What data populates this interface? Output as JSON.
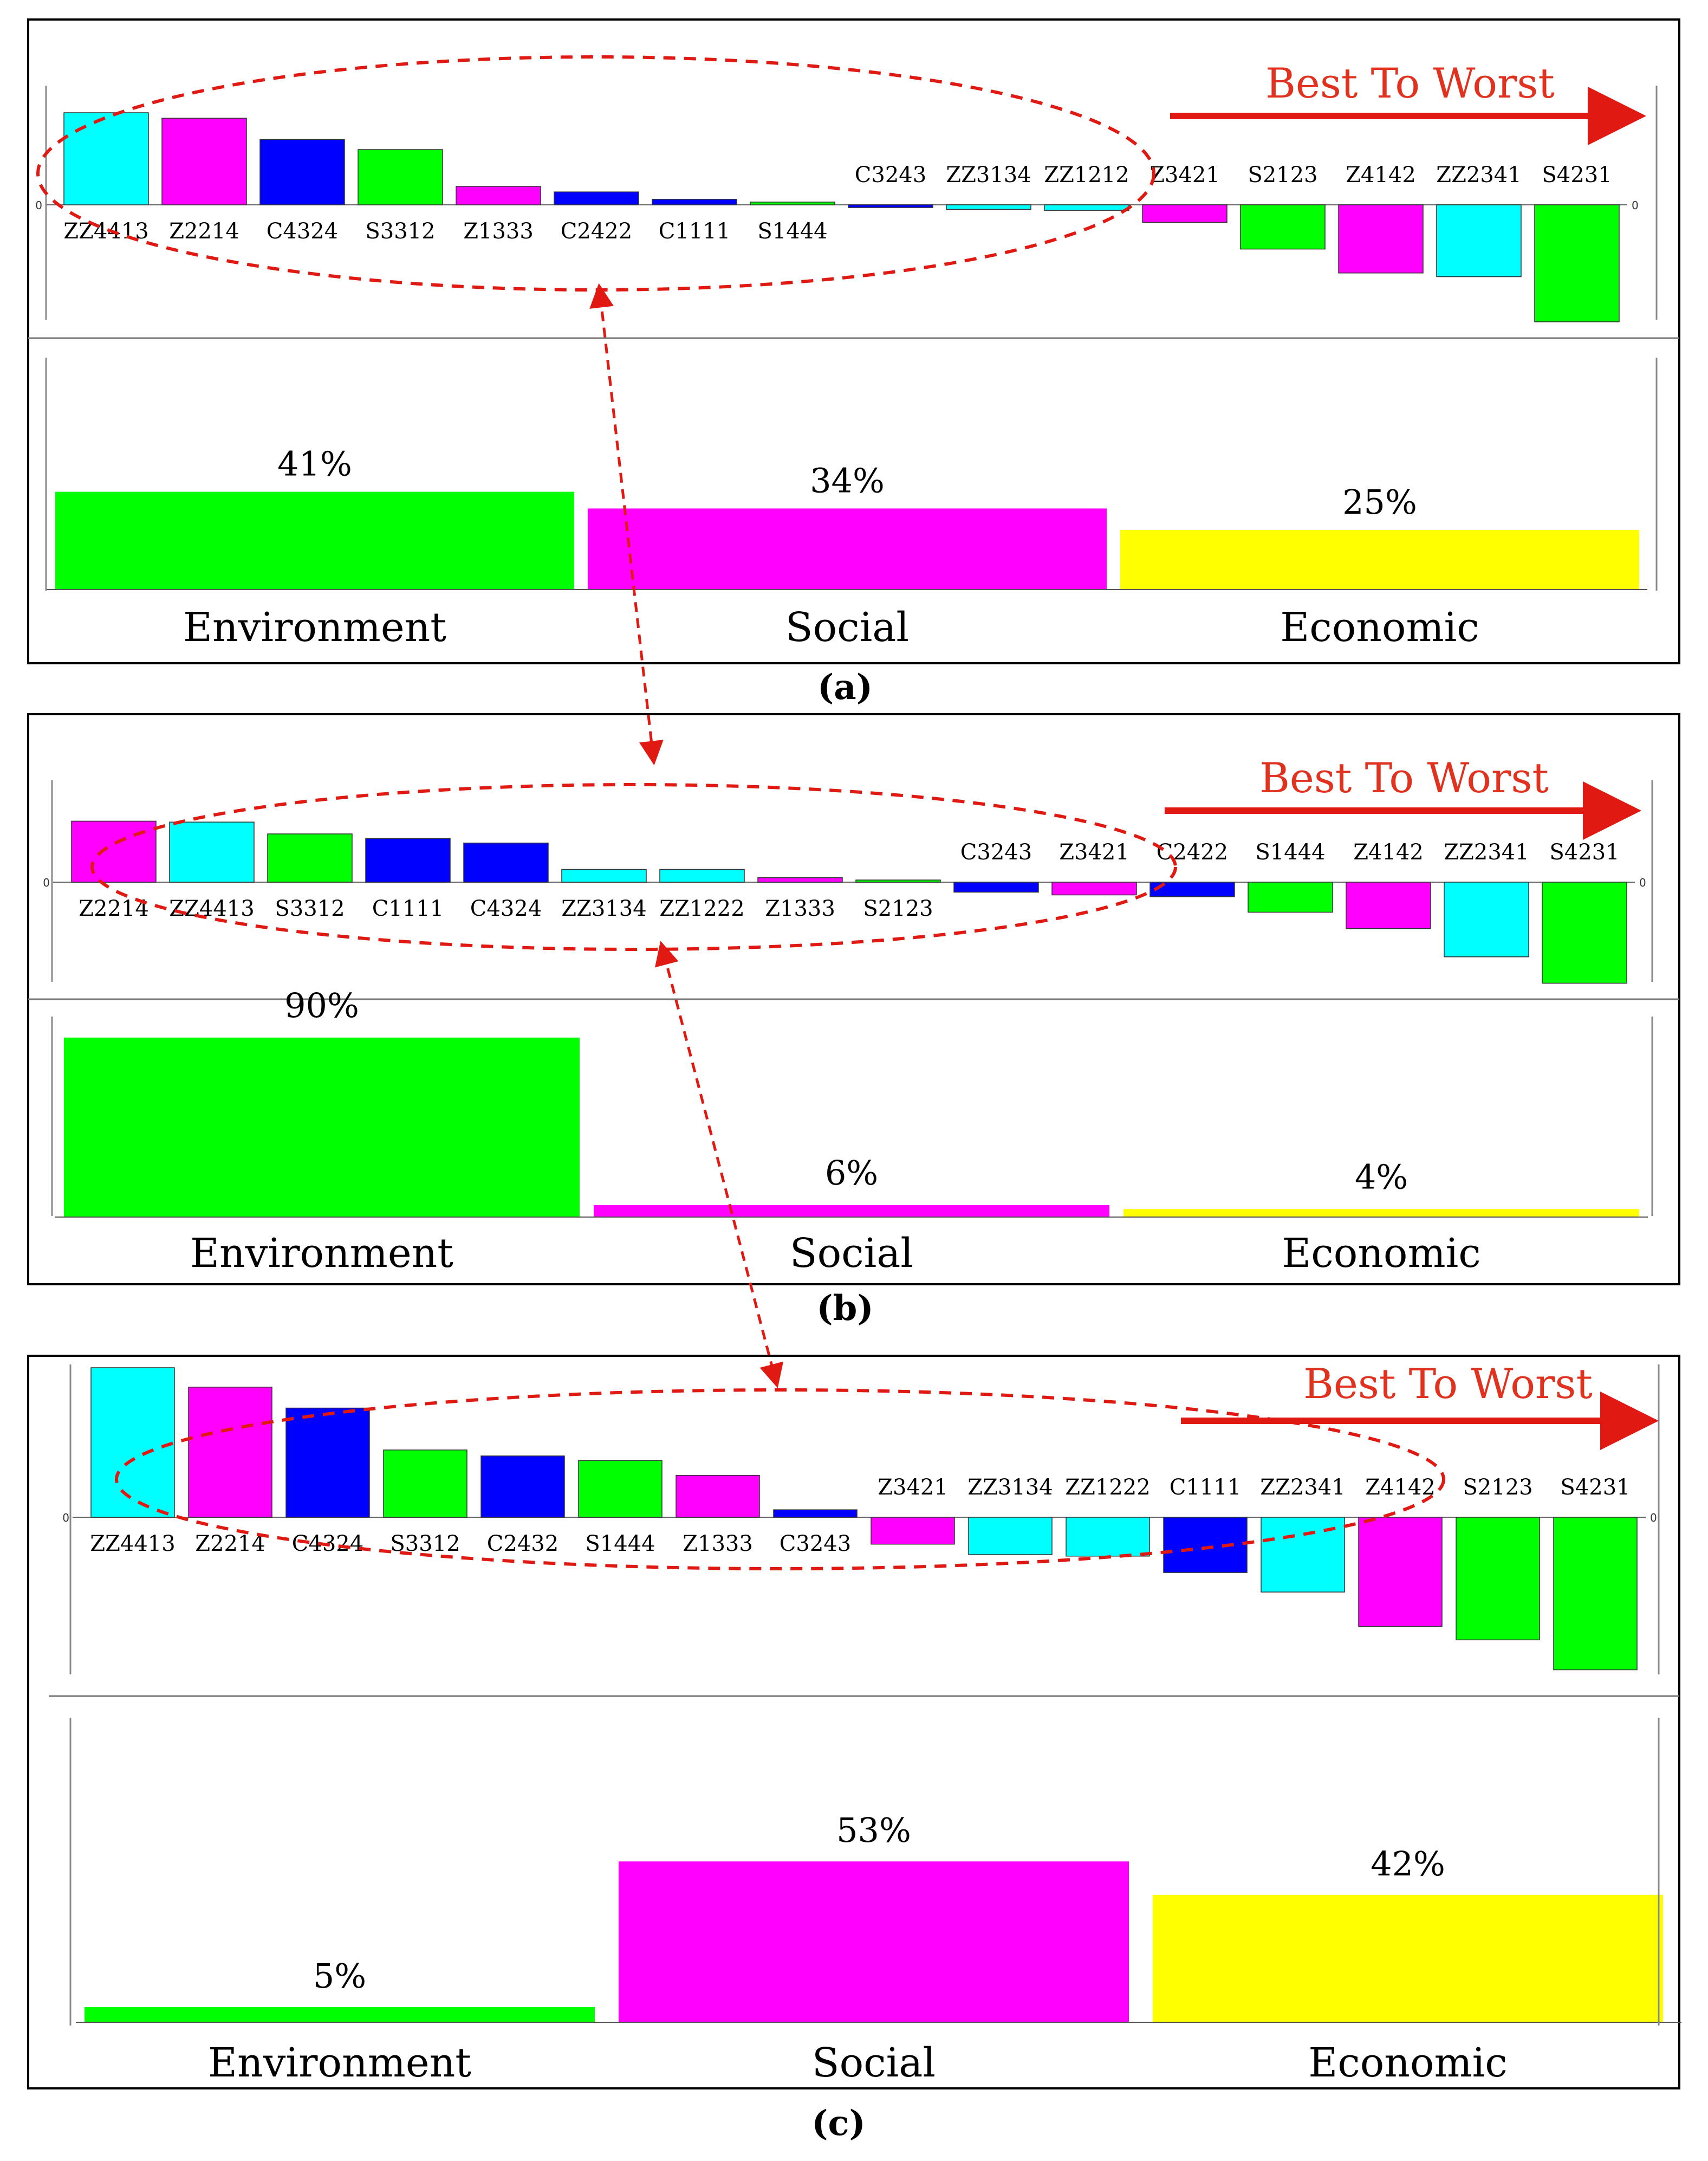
{
  "colors": {
    "C": "#0000ff",
    "Z": "#ff00ff",
    "S": "#00ff00",
    "ZZ": "#00ffff",
    "environment": "#00ff00",
    "social": "#ff00ff",
    "economic": "#ffff00",
    "annotation": "#e01a12",
    "title_text": "#e0321e"
  },
  "chart_data": [
    {
      "type": "bar",
      "panel": "(a)",
      "annotation": "Best To Worst",
      "zero_label": "0",
      "ranking": {
        "categories": [
          "ZZ4413",
          "Z2214",
          "C4324",
          "S3312",
          "Z1333",
          "C2422",
          "C1111",
          "S1444",
          "C3243",
          "ZZ3134",
          "ZZ1212",
          "Z3421",
          "S2123",
          "Z4142",
          "ZZ2341",
          "S4231"
        ],
        "values": [
          1.0,
          0.94,
          0.71,
          0.6,
          0.2,
          0.14,
          0.06,
          0.03,
          -0.03,
          -0.05,
          -0.06,
          -0.19,
          -0.48,
          -0.74,
          -0.78,
          -1.27
        ],
        "ylim": [
          -1.5,
          1.3
        ]
      },
      "weights": {
        "categories": [
          "Environment",
          "Social",
          "Economic"
        ],
        "values": [
          41,
          34,
          25
        ],
        "labels": [
          "41%",
          "34%",
          "25%"
        ],
        "ylim": [
          0,
          100
        ]
      }
    },
    {
      "type": "bar",
      "panel": "(b)",
      "annotation": "Best To Worst",
      "zero_label": "0",
      "ranking": {
        "categories": [
          "Z2214",
          "ZZ4413",
          "S3312",
          "C1111",
          "C4324",
          "ZZ3134",
          "ZZ1222",
          "Z1333",
          "S2123",
          "C3243",
          "Z3421",
          "C2422",
          "S1444",
          "Z4142",
          "ZZ2341",
          "S4231"
        ],
        "values": [
          0.67,
          0.66,
          0.53,
          0.48,
          0.43,
          0.14,
          0.14,
          0.05,
          0.01,
          -0.11,
          -0.14,
          -0.16,
          -0.33,
          -0.51,
          -0.82,
          -1.11
        ],
        "ylim": [
          -1.2,
          1.1
        ]
      },
      "weights": {
        "categories": [
          "Environment",
          "Social",
          "Economic"
        ],
        "values": [
          90,
          6,
          4
        ],
        "labels": [
          "90%",
          "6%",
          "4%"
        ],
        "ylim": [
          0,
          90
        ]
      }
    },
    {
      "type": "bar",
      "panel": "(c)",
      "annotation": "Best To Worst",
      "zero_label": "0",
      "ranking": {
        "categories": [
          "ZZ4413",
          "Z2214",
          "C4324",
          "S3312",
          "C2432",
          "S1444",
          "Z1333",
          "C3243",
          "Z3421",
          "ZZ3134",
          "ZZ1222",
          "C1111",
          "ZZ2341",
          "Z4142",
          "S2123",
          "S4231"
        ],
        "values": [
          1.0,
          0.87,
          0.73,
          0.45,
          0.41,
          0.38,
          0.28,
          0.05,
          -0.18,
          -0.25,
          -0.26,
          -0.37,
          -0.5,
          -0.73,
          -0.82,
          -1.02
        ],
        "ylim": [
          -1.05,
          1.05
        ]
      },
      "weights": {
        "categories": [
          "Environment",
          "Social",
          "Economic"
        ],
        "values": [
          5,
          53,
          42
        ],
        "labels": [
          "5%",
          "53%",
          "42%"
        ],
        "ylim": [
          0,
          60
        ]
      }
    }
  ]
}
